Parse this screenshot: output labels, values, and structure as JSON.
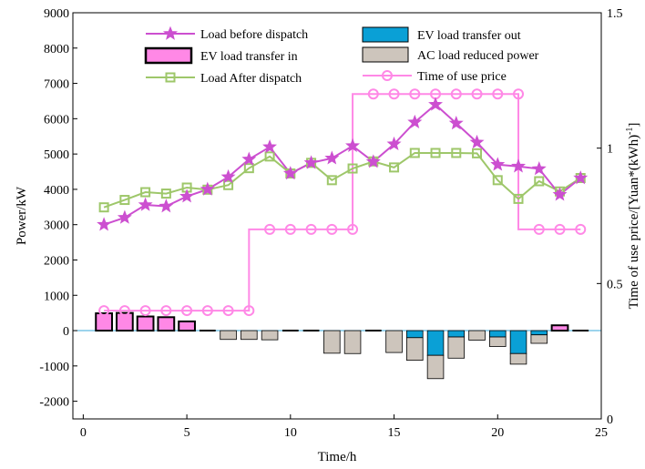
{
  "chart_data": {
    "type": "bar",
    "x": [
      1,
      2,
      3,
      4,
      5,
      6,
      7,
      8,
      9,
      10,
      11,
      12,
      13,
      14,
      15,
      16,
      17,
      18,
      19,
      20,
      21,
      22,
      23,
      24
    ],
    "xlabel": "Time/h",
    "ylabel": "Power/kW",
    "y2label_main": "Time of use price/[Yuan*(kWh)",
    "y2label_sup": "-1",
    "y2label_end": "]",
    "xlim": [
      -0.5,
      25
    ],
    "ylim": [
      -2500,
      9000
    ],
    "y2lim": [
      0,
      1.5
    ],
    "xticks": [
      "0",
      "5",
      "10",
      "15",
      "20",
      "25"
    ],
    "yticks": [
      "-2000",
      "-1000",
      "0",
      "1000",
      "2000",
      "3000",
      "4000",
      "5000",
      "6000",
      "7000",
      "8000",
      "9000"
    ],
    "y2ticks": [
      "0",
      "0.5",
      "1",
      "1.5"
    ],
    "legend_position": "top",
    "grid": false,
    "series": [
      {
        "name": "Load before dispatch",
        "kind": "line",
        "marker": "star",
        "color": "#cc4fd0",
        "values": [
          3000,
          3200,
          3560,
          3520,
          3800,
          4000,
          4350,
          4850,
          5200,
          4450,
          4750,
          4880,
          5230,
          4780,
          5280,
          5900,
          6400,
          5870,
          5330,
          4700,
          4650,
          4580,
          3850,
          4320
        ]
      },
      {
        "name": "Load After dispatch",
        "kind": "line",
        "marker": "square",
        "color": "#9ec76a",
        "values": [
          3490,
          3700,
          3920,
          3880,
          4050,
          3990,
          4120,
          4600,
          4930,
          4450,
          4750,
          4260,
          4590,
          4790,
          4620,
          5030,
          5030,
          5030,
          5020,
          4260,
          3730,
          4230,
          3940,
          4320
        ]
      },
      {
        "name": "EV load transfer in",
        "kind": "bar",
        "color": "#ff88e6",
        "values": [
          490,
          500,
          400,
          380,
          260,
          0,
          0,
          0,
          0,
          0,
          0,
          0,
          0,
          0,
          0,
          0,
          0,
          0,
          0,
          0,
          0,
          0,
          150,
          0
        ]
      },
      {
        "name": "EV load transfer out",
        "kind": "bar",
        "color": "#0aa0d6",
        "values": [
          0,
          0,
          0,
          0,
          0,
          0,
          0,
          0,
          0,
          0,
          0,
          0,
          0,
          0,
          0,
          -200,
          -700,
          -180,
          0,
          -180,
          -650,
          -120,
          0,
          0
        ]
      },
      {
        "name": "AC load reduced power",
        "kind": "bar",
        "color": "#cdc5bc",
        "values": [
          0,
          0,
          0,
          0,
          0,
          0,
          -250,
          -250,
          -260,
          0,
          0,
          -640,
          -650,
          0,
          -620,
          -640,
          -660,
          -600,
          -270,
          -270,
          -300,
          -240,
          0,
          0
        ]
      },
      {
        "name": "Time of use price",
        "kind": "line",
        "marker": "circle",
        "axis": "right",
        "color": "#ff88e6",
        "values": [
          0.4,
          0.4,
          0.4,
          0.4,
          0.4,
          0.4,
          0.4,
          0.4,
          0.7,
          0.7,
          0.7,
          0.7,
          0.7,
          1.2,
          1.2,
          1.2,
          1.2,
          1.2,
          1.2,
          1.2,
          1.2,
          0.7,
          0.7,
          0.7
        ]
      }
    ]
  }
}
